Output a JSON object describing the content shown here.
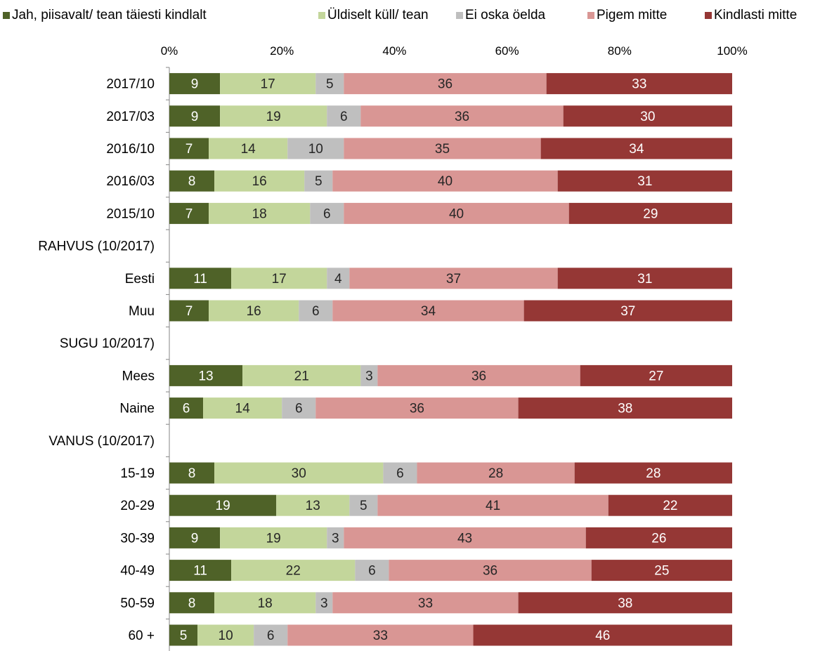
{
  "chart_data": {
    "type": "bar",
    "orientation": "horizontal",
    "stacked": true,
    "percent_stacked": true,
    "legend_position": "top",
    "grid": false,
    "xlim": [
      0,
      100
    ],
    "x_ticks": [
      "0%",
      "20%",
      "40%",
      "60%",
      "80%",
      "100%"
    ],
    "categories": [
      "2017/10",
      "2017/03",
      "2016/10",
      "2016/03",
      "2015/10",
      "RAHVUS (10/2017)",
      "Eesti",
      "Muu",
      "SUGU 10/2017)",
      "Mees",
      "Naine",
      "VANUS (10/2017)",
      "15-19",
      "20-29",
      "30-39",
      "40-49",
      "50-59",
      "60 +"
    ],
    "series": [
      {
        "name": "Jah, piisavalt/ tean täiesti kindlalt",
        "color": "#4f6228",
        "label_color": "#ffffff",
        "values": [
          9,
          9,
          7,
          8,
          7,
          null,
          11,
          7,
          null,
          13,
          6,
          null,
          8,
          19,
          9,
          11,
          8,
          5
        ]
      },
      {
        "name": "Üldiselt küll/ tean",
        "color": "#c3d69b",
        "label_color": "#262626",
        "values": [
          17,
          19,
          14,
          16,
          18,
          null,
          17,
          16,
          null,
          21,
          14,
          null,
          30,
          13,
          19,
          22,
          18,
          10
        ]
      },
      {
        "name": "Ei oska öelda",
        "color": "#bfbfbf",
        "label_color": "#262626",
        "values": [
          5,
          6,
          10,
          5,
          6,
          null,
          4,
          6,
          null,
          3,
          6,
          null,
          6,
          5,
          3,
          6,
          3,
          6
        ]
      },
      {
        "name": "Pigem mitte",
        "color": "#d99694",
        "label_color": "#262626",
        "values": [
          36,
          36,
          35,
          40,
          40,
          null,
          37,
          34,
          null,
          36,
          36,
          null,
          28,
          41,
          43,
          36,
          33,
          33
        ]
      },
      {
        "name": "Kindlasti mitte",
        "color": "#953735",
        "label_color": "#ffffff",
        "values": [
          33,
          30,
          34,
          31,
          29,
          null,
          31,
          37,
          null,
          27,
          38,
          null,
          28,
          22,
          26,
          25,
          38,
          46
        ]
      }
    ]
  }
}
